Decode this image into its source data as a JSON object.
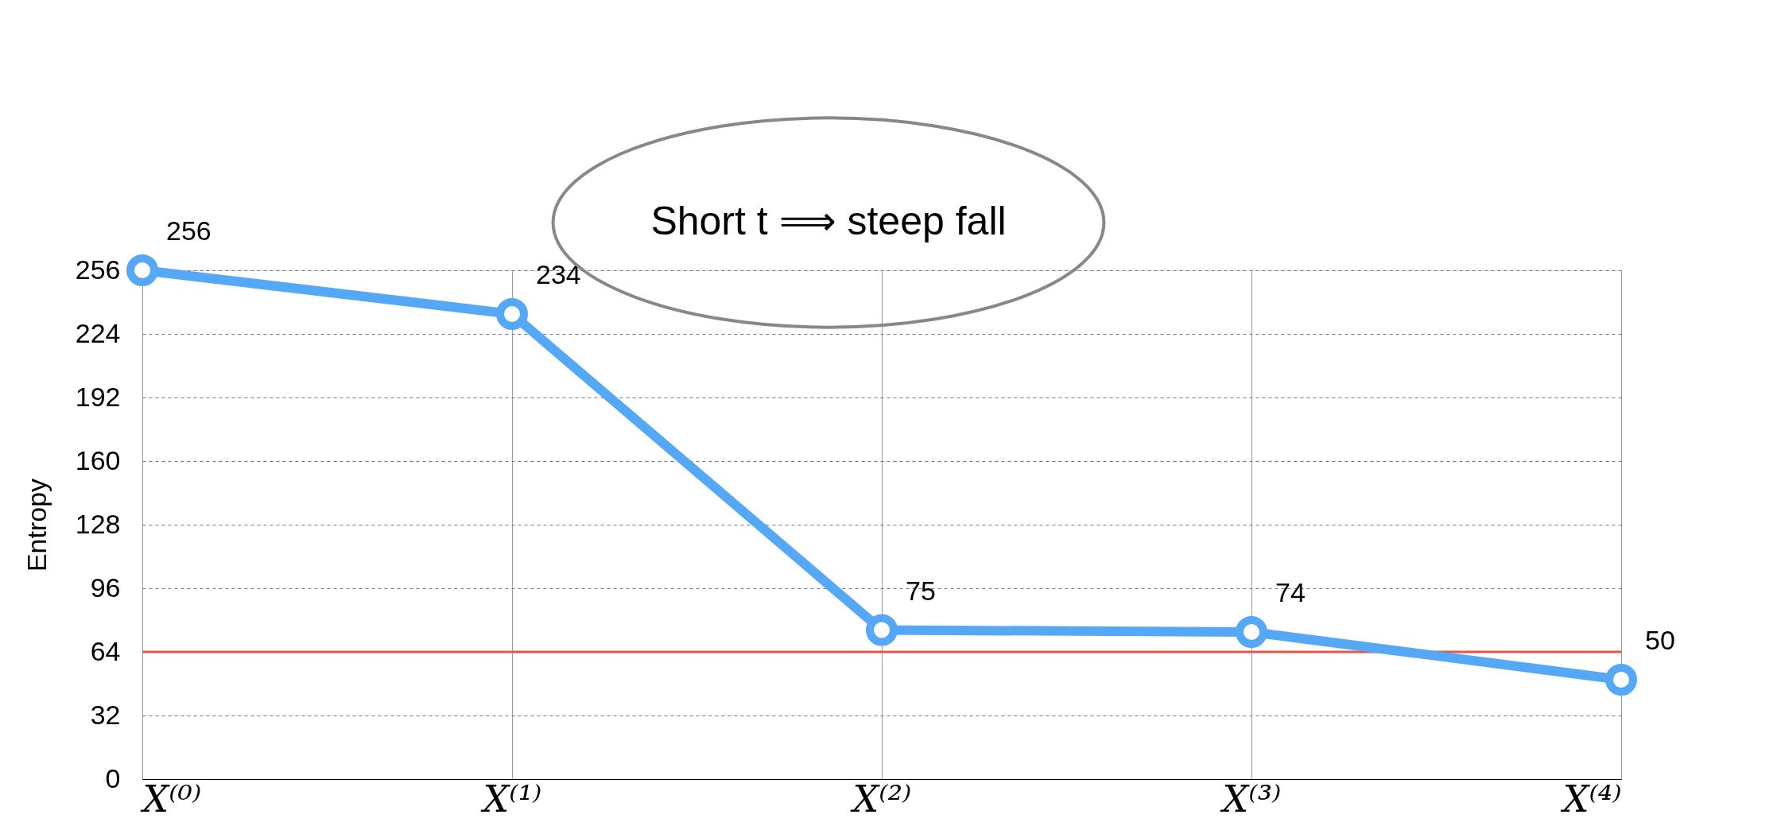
{
  "chart_data": {
    "type": "line",
    "ylabel": "Entropy",
    "categories": [
      "X⁽⁰⁾",
      "X⁽¹⁾",
      "X⁽²⁾",
      "X⁽³⁾",
      "X⁽⁴⁾"
    ],
    "series": [
      {
        "color": "#55a8f5",
        "values": [
          256,
          234,
          75,
          74,
          50
        ]
      }
    ],
    "ylim": [
      0,
      256
    ],
    "yticks": [
      0,
      32,
      64,
      96,
      128,
      160,
      192,
      224,
      256
    ],
    "grid": true,
    "marker": "circle",
    "line_style": "solid",
    "data_labels": true,
    "ref_lines": [
      {
        "axis": "y",
        "value": 64,
        "color": "#e8534a"
      }
    ],
    "annotations": [
      "Short  t ⟹ steep  fall"
    ]
  }
}
